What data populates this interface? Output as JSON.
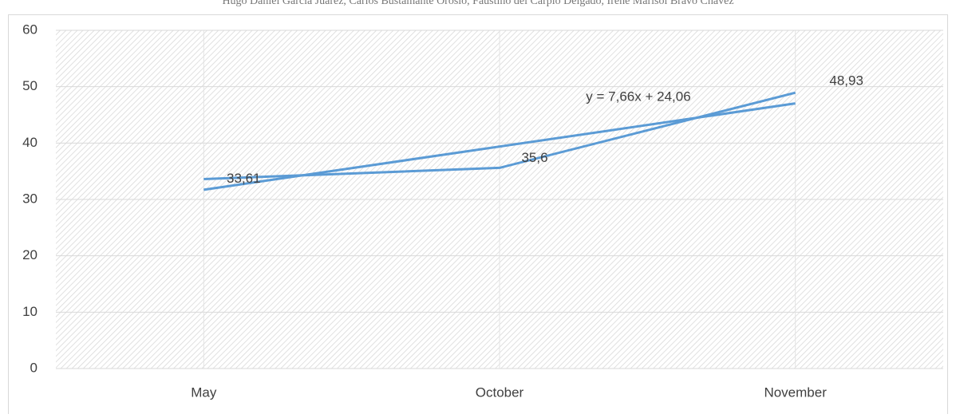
{
  "header": "Hugo Daniel García Juárez, Carlos Bustamante Orosio, Faustino del Carpio Delgado, Irene Marisol Bravo Chávez",
  "chart_data": {
    "type": "line",
    "categories": [
      "May",
      "October",
      "November"
    ],
    "values": [
      33.61,
      35.6,
      48.93
    ],
    "value_labels": [
      "33,61",
      "35,6",
      "48,93"
    ],
    "color": "#5b9bd5",
    "trendline": {
      "label": "y = 7,66x + 24,06",
      "slope": 7.66,
      "intercept": 24.06,
      "color": "#5b9bd5"
    },
    "ylim": [
      0,
      60
    ],
    "yticks": [
      0,
      10,
      20,
      30,
      40,
      50,
      60
    ],
    "grid": true
  }
}
